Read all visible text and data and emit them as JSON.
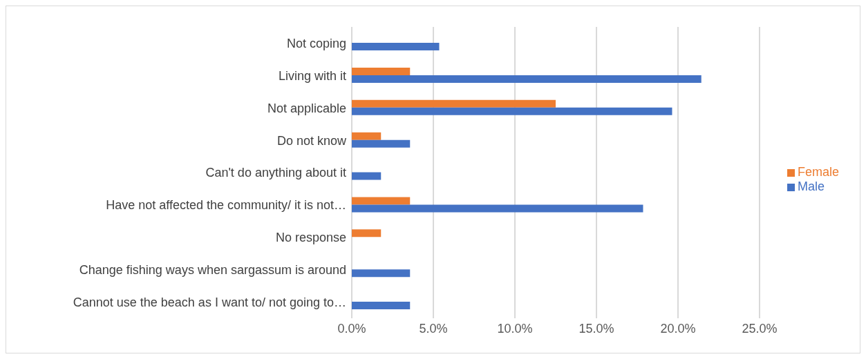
{
  "chart_data": {
    "type": "bar",
    "orientation": "horizontal",
    "categories": [
      "Not coping",
      "Living with it",
      "Not applicable",
      "Do not know",
      "Can't do anything about it",
      "Have not affected the community/ it is not…",
      "No response",
      "Change fishing ways when sargassum is around",
      "Cannot use the beach as I want to/ not going to…"
    ],
    "series": [
      {
        "name": "Female",
        "color": "#ed7d31",
        "values": [
          null,
          3.57,
          12.5,
          1.79,
          null,
          3.57,
          1.79,
          null,
          null
        ]
      },
      {
        "name": "Male",
        "color": "#4472c4",
        "values": [
          5.36,
          21.43,
          19.64,
          3.57,
          1.79,
          17.86,
          null,
          3.57,
          3.57
        ]
      }
    ],
    "xlim": [
      0,
      25
    ],
    "xticks": [
      {
        "value": 0,
        "label": "0.0%"
      },
      {
        "value": 5,
        "label": "5.0%"
      },
      {
        "value": 10,
        "label": "10.0%"
      },
      {
        "value": 15,
        "label": "15.0%"
      },
      {
        "value": 20,
        "label": "20.0%"
      },
      {
        "value": 25,
        "label": "25.0%"
      }
    ],
    "grid": "x",
    "legend": "right"
  }
}
